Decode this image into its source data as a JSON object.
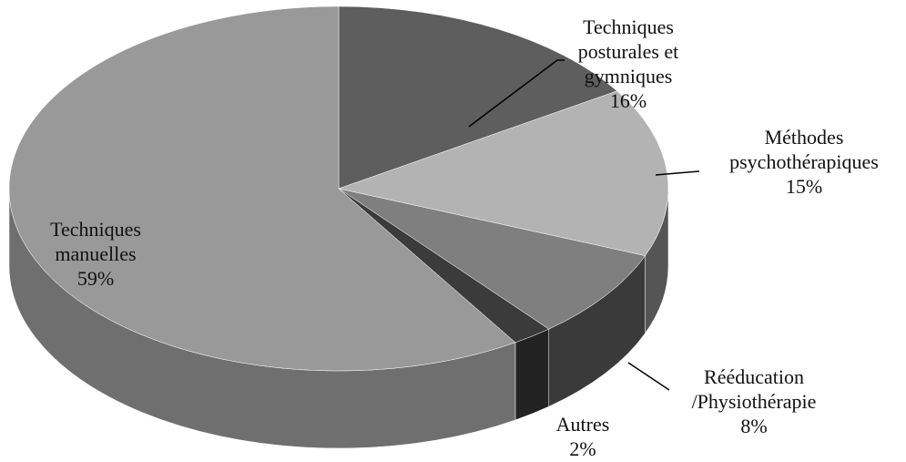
{
  "chart_data": {
    "type": "pie",
    "categories": [
      "Techniques posturales et gymniques",
      "Méthodes psychothérapiques",
      "Rééducation /Physiothérapie",
      "Autres",
      "Techniques manuelles"
    ],
    "values": [
      16,
      15,
      8,
      2,
      59
    ],
    "value_labels": [
      "16%",
      "15%",
      "8%",
      "2%",
      "59%"
    ],
    "colors": [
      "#5e5e5e",
      "#b3b3b3",
      "#7f7f7f",
      "#3b3b3b",
      "#999999"
    ],
    "side_colors": [
      "#3e3e3e",
      "#555555",
      "#3a3a3a",
      "#222222",
      "#6f6f6f"
    ]
  }
}
